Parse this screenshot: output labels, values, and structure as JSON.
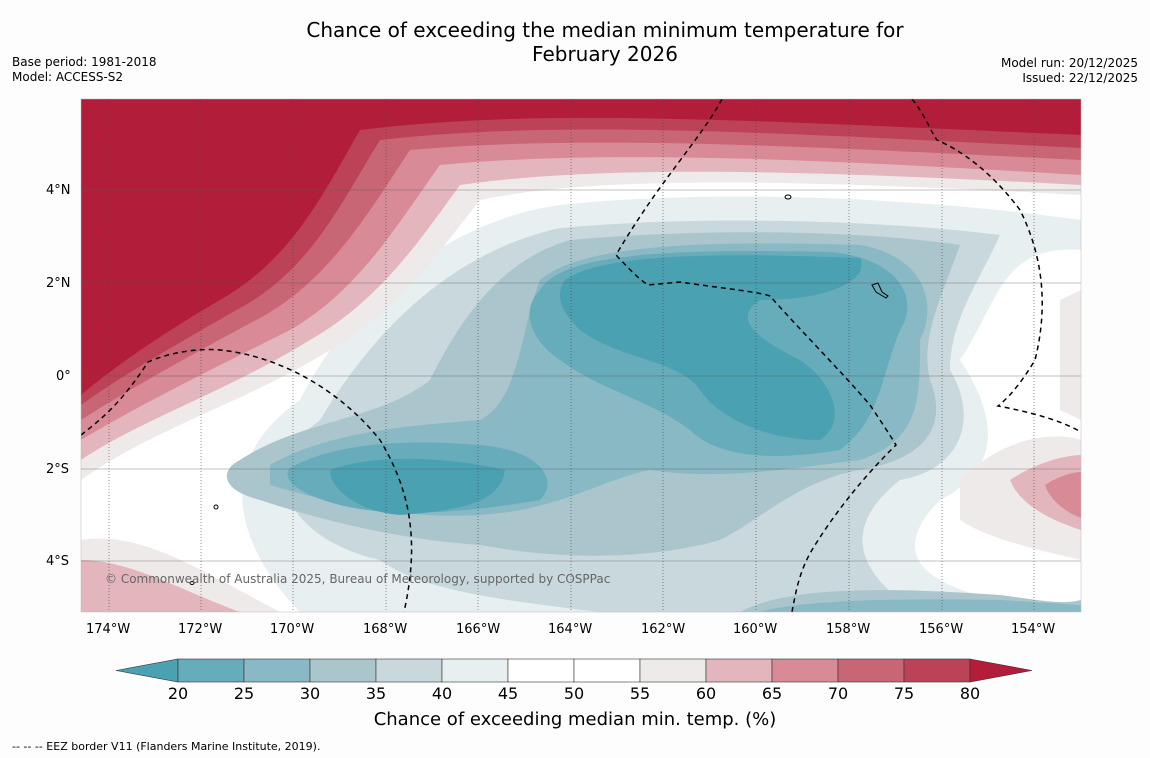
{
  "title_line1": "Chance of exceeding the median minimum temperature for",
  "title_line2": "February 2026",
  "base_period": "Base period: 1981-2018",
  "model": "Model: ACCESS-S2",
  "model_run": "Model run: 20/12/2025",
  "issued": "Issued: 22/12/2025",
  "lon_labels": [
    "174°W",
    "172°W",
    "170°W",
    "168°W",
    "166°W",
    "164°W",
    "162°W",
    "160°W",
    "158°W",
    "156°W",
    "154°W"
  ],
  "lat_labels": [
    "4°N",
    "2°N",
    "0°",
    "2°S",
    "4°S"
  ],
  "copyright": "© Commonwealth of Australia 2025, Bureau of Meteorology, supported by COSPPac",
  "colorbar": {
    "ticks": [
      "20",
      "25",
      "30",
      "35",
      "40",
      "45",
      "50",
      "55",
      "60",
      "65",
      "70",
      "75",
      "80"
    ],
    "colors": [
      "#4aa1b1",
      "#67acbb",
      "#89b9c5",
      "#aac6cc",
      "#c9d8dd",
      "#e8eff1",
      "#ffffff",
      "#ffffff",
      "#efeaea",
      "#e3b6bd",
      "#d88a96",
      "#c96675",
      "#bc4357",
      "#b21e3a"
    ],
    "title": "Chance of exceeding median min. temp. (%)"
  },
  "footer": "--  --  -- EEZ border V11 (Flanders Marine Institute, 2019)."
}
